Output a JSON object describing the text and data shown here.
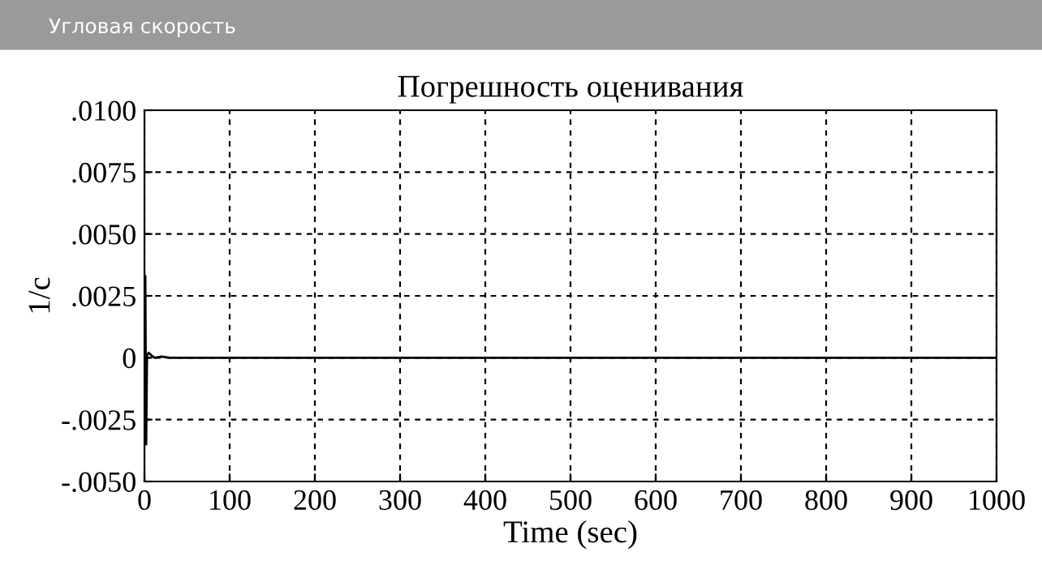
{
  "chart_data": {
    "type": "line",
    "title": "Погрешность оценивания",
    "xlabel": "Time (sec)",
    "ylabel": "1/с",
    "annotations": [
      "Угловая скорость"
    ],
    "series": [
      {
        "color": "#000000",
        "x": [
          0,
          1,
          2,
          3,
          5,
          8,
          12,
          20,
          30,
          50,
          100,
          200,
          400,
          600,
          800,
          1000
        ],
        "values": [
          0,
          0.0033,
          -0.0035,
          0.0001,
          0.0002,
          0.0001,
          0,
          5e-05,
          0,
          0,
          0,
          0,
          0,
          0,
          0,
          0
        ]
      }
    ],
    "xlim": [
      0,
      1000
    ],
    "xticks": [
      0,
      100,
      200,
      300,
      400,
      500,
      600,
      700,
      800,
      900,
      1000
    ],
    "ylim": [
      -0.005,
      0.01
    ],
    "yticks": [
      {
        "value": -0.005,
        "label": "-.0050"
      },
      {
        "value": -0.0025,
        "label": "-.0025"
      },
      {
        "value": 0,
        "label": "0"
      },
      {
        "value": 0.0025,
        "label": ".0025"
      },
      {
        "value": 0.005,
        "label": ".0050"
      },
      {
        "value": 0.0075,
        "label": ".0075"
      },
      {
        "value": 0.01,
        "label": ".0100"
      }
    ],
    "grid": true,
    "line_style": "solid",
    "marker": "none"
  }
}
